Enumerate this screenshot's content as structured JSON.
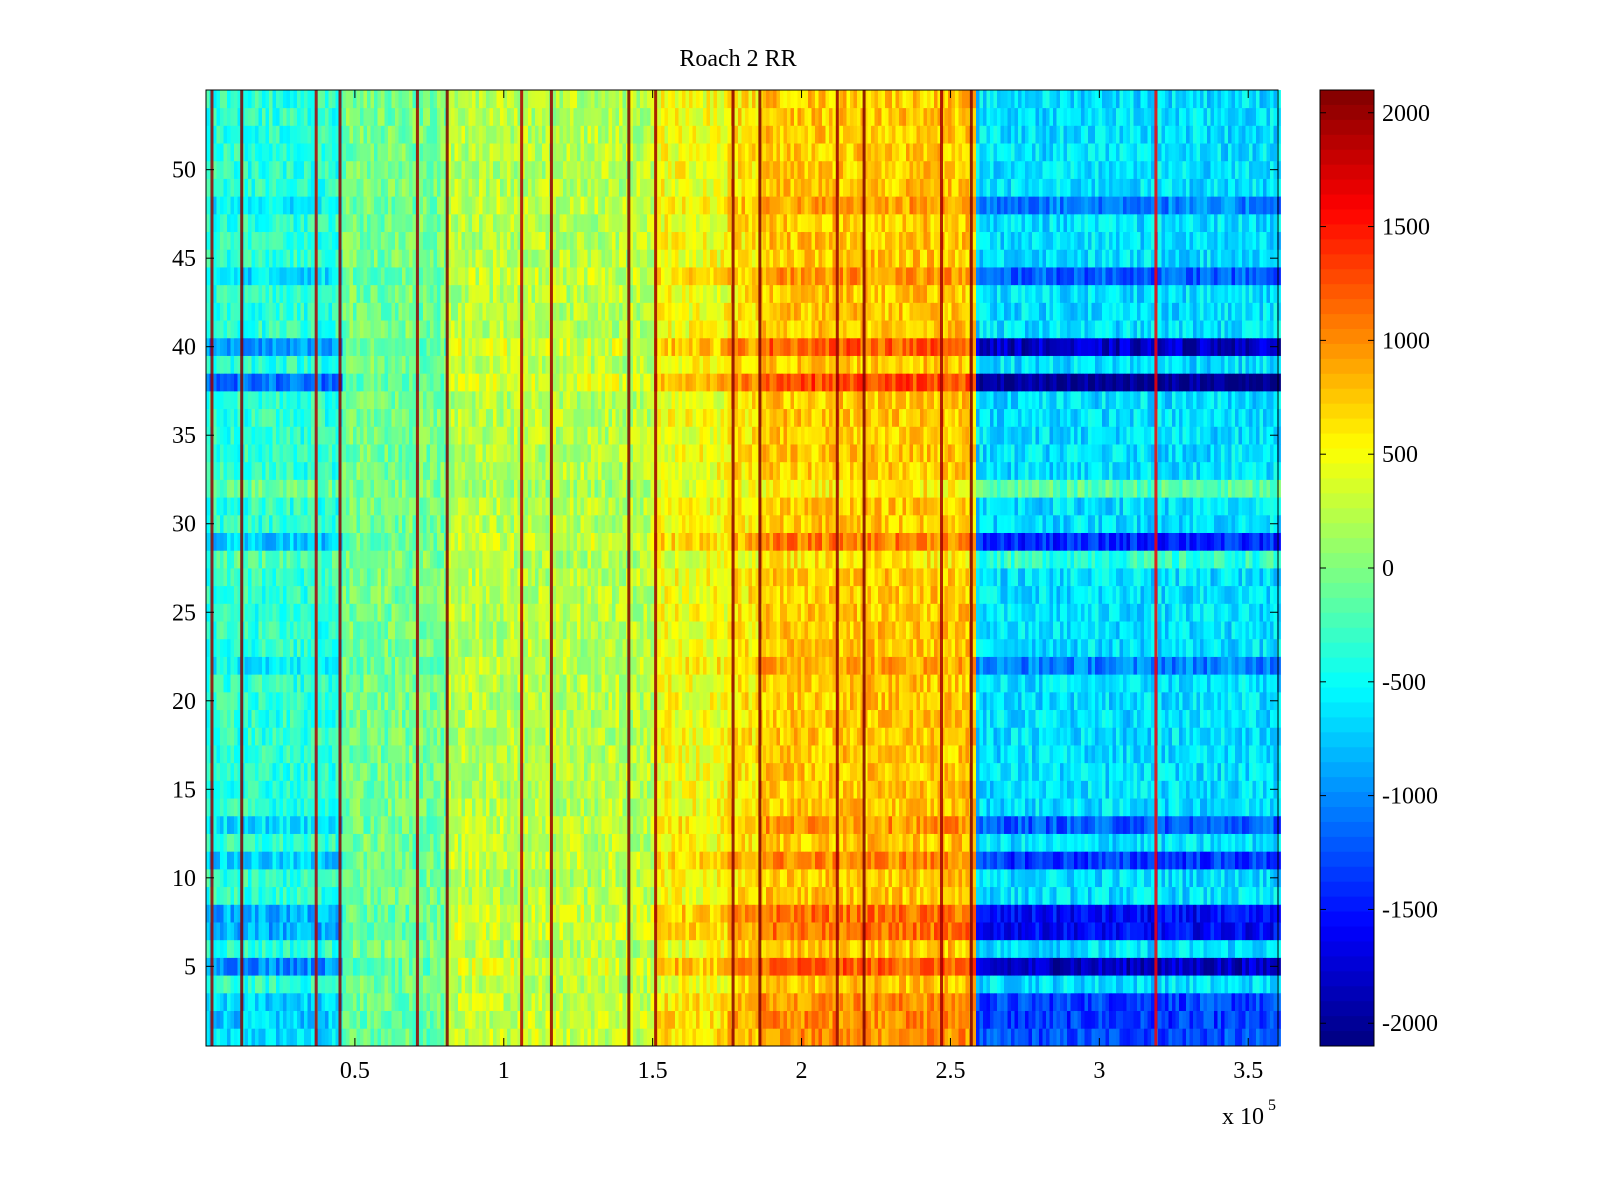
{
  "chart_data": {
    "type": "heatmap",
    "title": "Roach 2 RR",
    "xlabel": "",
    "ylabel": "",
    "x_range": [
      0,
      360000
    ],
    "y_range": [
      0.5,
      54.5
    ],
    "rows": 54,
    "x_tick_values": [
      50000,
      100000,
      150000,
      200000,
      250000,
      300000,
      350000
    ],
    "x_tick_labels": [
      "0.5",
      "1",
      "1.5",
      "2",
      "2.5",
      "3",
      "3.5"
    ],
    "x_exponent_label": {
      "base": "x 10",
      "power": "5"
    },
    "y_tick_values": [
      5,
      10,
      15,
      20,
      25,
      30,
      35,
      40,
      45,
      50
    ],
    "y_tick_labels": [
      "5",
      "10",
      "15",
      "20",
      "25",
      "30",
      "35",
      "40",
      "45",
      "50"
    ],
    "colorbar": {
      "colormap": "jet",
      "range": [
        -2100,
        2100
      ],
      "tick_values": [
        2000,
        1500,
        1000,
        500,
        0,
        -500,
        -1000,
        -1500,
        -2000
      ],
      "tick_labels": [
        "2000",
        "1500",
        "1000",
        "500",
        "0",
        "-500",
        "-1000",
        "-1500",
        "-2000"
      ]
    },
    "column_segments": [
      {
        "x_start": 0,
        "x_end": 45000,
        "mean_value": -350
      },
      {
        "x_start": 45000,
        "x_end": 80000,
        "mean_value": -50
      },
      {
        "x_start": 80000,
        "x_end": 150000,
        "mean_value": 220
      },
      {
        "x_start": 150000,
        "x_end": 175000,
        "mean_value": 480
      },
      {
        "x_start": 175000,
        "x_end": 185000,
        "mean_value": 620
      },
      {
        "x_start": 185000,
        "x_end": 258000,
        "mean_value": 750
      },
      {
        "x_start": 258000,
        "x_end": 360000,
        "mean_value": -650
      }
    ],
    "row_offsets": [
      {
        "row": 1,
        "offset": 0.8
      },
      {
        "row": 2,
        "offset": 0.9
      },
      {
        "row": 3,
        "offset": 0.85
      },
      {
        "row": 5,
        "offset": 1.5
      },
      {
        "row": 7,
        "offset": 1.2
      },
      {
        "row": 8,
        "offset": 1.2
      },
      {
        "row": 11,
        "offset": 0.9
      },
      {
        "row": 13,
        "offset": 0.7
      },
      {
        "row": 22,
        "offset": 0.5
      },
      {
        "row": 28,
        "offset": -0.4
      },
      {
        "row": 29,
        "offset": 1.0
      },
      {
        "row": 32,
        "offset": -0.6
      },
      {
        "row": 38,
        "offset": 1.8
      },
      {
        "row": 40,
        "offset": 1.5
      },
      {
        "row": 44,
        "offset": 0.7
      },
      {
        "row": 48,
        "offset": 0.5
      }
    ],
    "vertical_stripes": [
      {
        "x": 2000,
        "value": 2000
      },
      {
        "x": 12000,
        "value": 2100
      },
      {
        "x": 37000,
        "value": 1900
      },
      {
        "x": 45000,
        "value": 2050
      },
      {
        "x": 71000,
        "value": 2000
      },
      {
        "x": 81000,
        "value": 2100
      },
      {
        "x": 106000,
        "value": 1900
      },
      {
        "x": 116000,
        "value": 2000
      },
      {
        "x": 142000,
        "value": 2100
      },
      {
        "x": 151000,
        "value": 2000
      },
      {
        "x": 177000,
        "value": 2050
      },
      {
        "x": 186000,
        "value": 2100
      },
      {
        "x": 212000,
        "value": 2000
      },
      {
        "x": 221000,
        "value": 2100
      },
      {
        "x": 247000,
        "value": 1950
      },
      {
        "x": 257000,
        "value": 2100
      },
      {
        "x": 319000,
        "value": 1600
      }
    ]
  }
}
